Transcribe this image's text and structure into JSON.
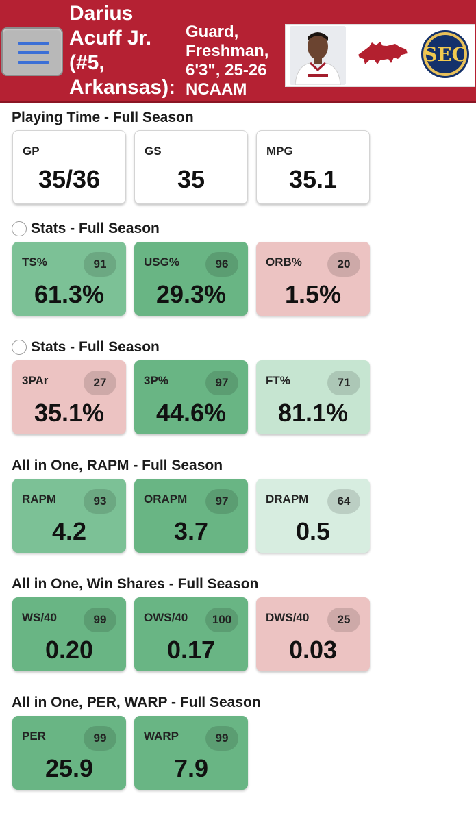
{
  "header": {
    "player_name": "Darius\nAcuff Jr.\n(#5,\nArkansas):",
    "player_info": "Guard,\nFreshman,\n6'3\", 25-26\nNCAAM",
    "photo_icon": "player-photo",
    "team_logo_icon": "razorback-logo",
    "conference_logo_text": "SEC",
    "colors": {
      "brand": "#b52133",
      "menu_bar": "#3b6fd6"
    }
  },
  "sections": [
    {
      "title": "Playing Time - Full Season",
      "radio": false,
      "cards": [
        {
          "label": "GP",
          "value": "35/36"
        },
        {
          "label": "GS",
          "value": "35"
        },
        {
          "label": "MPG",
          "value": "35.1"
        }
      ]
    },
    {
      "title": "Stats - Full Season",
      "radio": true,
      "cards": [
        {
          "label": "TS%",
          "pct": "91",
          "value": "61.3%"
        },
        {
          "label": "USG%",
          "pct": "96",
          "value": "29.3%"
        },
        {
          "label": "ORB%",
          "pct": "20",
          "value": "1.5%"
        }
      ]
    },
    {
      "title": "Stats - Full Season",
      "radio": true,
      "cards": [
        {
          "label": "3PAr",
          "pct": "27",
          "value": "35.1%"
        },
        {
          "label": "3P%",
          "pct": "97",
          "value": "44.6%"
        },
        {
          "label": "FT%",
          "pct": "71",
          "value": "81.1%"
        }
      ]
    },
    {
      "title": "All in One, RAPM - Full Season",
      "radio": false,
      "cards": [
        {
          "label": "RAPM",
          "pct": "93",
          "value": "4.2"
        },
        {
          "label": "ORAPM",
          "pct": "97",
          "value": "3.7"
        },
        {
          "label": "DRAPM",
          "pct": "64",
          "value": "0.5"
        }
      ]
    },
    {
      "title": "All in One, Win Shares - Full Season",
      "radio": false,
      "cards": [
        {
          "label": "WS/40",
          "pct": "99",
          "value": "0.20"
        },
        {
          "label": "OWS/40",
          "pct": "100",
          "value": "0.17"
        },
        {
          "label": "DWS/40",
          "pct": "25",
          "value": "0.03"
        }
      ]
    },
    {
      "title": "All in One, PER, WARP - Full Season",
      "radio": false,
      "cards": [
        {
          "label": "PER",
          "pct": "99",
          "value": "25.9"
        },
        {
          "label": "WARP",
          "pct": "99",
          "value": "7.9"
        }
      ]
    }
  ]
}
